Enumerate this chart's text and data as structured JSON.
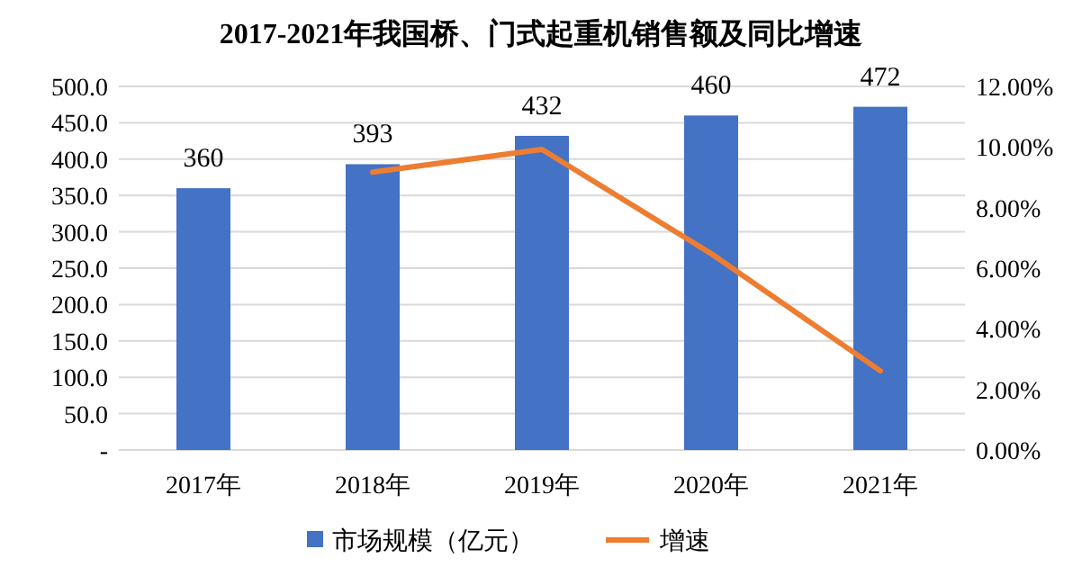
{
  "chart_data": {
    "type": "bar",
    "title": "2017-2021年我国桥、门式起重机销售额及同比增速",
    "categories": [
      "2017年",
      "2018年",
      "2019年",
      "2020年",
      "2021年"
    ],
    "series": [
      {
        "name": "市场规模（亿元）",
        "color": "#4472c4",
        "values": [
          360,
          393,
          432,
          460,
          472
        ],
        "value_labels": [
          "360",
          "393",
          "432",
          "460",
          "472"
        ]
      },
      {
        "name": "增速",
        "type": "line",
        "axis": "y2",
        "color": "#ed7d31",
        "values": [
          null,
          9.17,
          9.92,
          6.48,
          2.61
        ]
      }
    ],
    "ylim": [
      0,
      500
    ],
    "yticks": [
      {
        "value": 0,
        "label": "-"
      },
      {
        "value": 50,
        "label": "50.0"
      },
      {
        "value": 100,
        "label": "100.0"
      },
      {
        "value": 150,
        "label": "150.0"
      },
      {
        "value": 200,
        "label": "200.0"
      },
      {
        "value": 250,
        "label": "250.0"
      },
      {
        "value": 300,
        "label": "300.0"
      },
      {
        "value": 350,
        "label": "350.0"
      },
      {
        "value": 400,
        "label": "400.0"
      },
      {
        "value": 450,
        "label": "450.0"
      },
      {
        "value": 500,
        "label": "500.0"
      }
    ],
    "y2lim": [
      0,
      12
    ],
    "y2ticks": [
      {
        "value": 0,
        "label": "0.00%"
      },
      {
        "value": 2,
        "label": "2.00%"
      },
      {
        "value": 4,
        "label": "4.00%"
      },
      {
        "value": 6,
        "label": "6.00%"
      },
      {
        "value": 8,
        "label": "8.00%"
      },
      {
        "value": 10,
        "label": "10.00%"
      },
      {
        "value": 12,
        "label": "12.00%"
      }
    ],
    "grid": "y",
    "legend": "bottom",
    "marker": "none",
    "line_style": "solid"
  }
}
